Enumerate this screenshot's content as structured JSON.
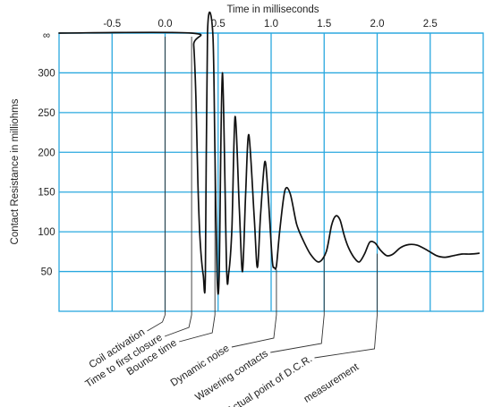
{
  "chart_data": {
    "type": "line",
    "title": "",
    "xlabel": "Time in milliseconds",
    "ylabel": "Contact Resistance in milliohms",
    "xlim": [
      -1.0,
      3.0
    ],
    "ylim": [
      0,
      350
    ],
    "x_ticks": [
      -0.5,
      0.0,
      0.5,
      1.0,
      1.5,
      2.0,
      2.5
    ],
    "x_tick_labels": [
      "-0.5",
      "0.0",
      "0.5",
      "1.0",
      "1.5",
      "2.0",
      "2.5"
    ],
    "y_ticks": [
      50,
      100,
      150,
      200,
      250,
      300,
      350
    ],
    "y_tick_labels": [
      "50",
      "100",
      "150",
      "200",
      "250",
      "300",
      "∞"
    ],
    "grid": true,
    "x_axis_position": "top",
    "series": [
      {
        "points": [
          [
            -1.0,
            350
          ],
          [
            0.25,
            350
          ],
          [
            0.27,
            335
          ],
          [
            0.29,
            270
          ],
          [
            0.31,
            160
          ],
          [
            0.33,
            90
          ],
          [
            0.36,
            45
          ],
          [
            0.38,
            45
          ],
          [
            0.4,
            350
          ],
          [
            0.45,
            350
          ],
          [
            0.47,
            200
          ],
          [
            0.49,
            45
          ],
          [
            0.51,
            45
          ],
          [
            0.54,
            300
          ],
          [
            0.58,
            55
          ],
          [
            0.6,
            48
          ],
          [
            0.63,
            105
          ],
          [
            0.66,
            245
          ],
          [
            0.7,
            130
          ],
          [
            0.73,
            50
          ],
          [
            0.76,
            150
          ],
          [
            0.79,
            222
          ],
          [
            0.84,
            120
          ],
          [
            0.87,
            55
          ],
          [
            0.9,
            120
          ],
          [
            0.94,
            188
          ],
          [
            0.97,
            150
          ],
          [
            1.01,
            65
          ],
          [
            1.03,
            55
          ],
          [
            1.05,
            57
          ],
          [
            1.08,
            100
          ],
          [
            1.13,
            152
          ],
          [
            1.18,
            148
          ],
          [
            1.24,
            110
          ],
          [
            1.3,
            90
          ],
          [
            1.37,
            72
          ],
          [
            1.45,
            62
          ],
          [
            1.52,
            75
          ],
          [
            1.57,
            108
          ],
          [
            1.61,
            120
          ],
          [
            1.65,
            115
          ],
          [
            1.69,
            95
          ],
          [
            1.73,
            80
          ],
          [
            1.78,
            68
          ],
          [
            1.83,
            62
          ],
          [
            1.88,
            72
          ],
          [
            1.93,
            87
          ],
          [
            1.98,
            86
          ],
          [
            2.03,
            77
          ],
          [
            2.09,
            70
          ],
          [
            2.15,
            72
          ],
          [
            2.22,
            80
          ],
          [
            2.3,
            84
          ],
          [
            2.38,
            83
          ],
          [
            2.47,
            77
          ],
          [
            2.56,
            70
          ],
          [
            2.64,
            68
          ],
          [
            2.72,
            70
          ],
          [
            2.8,
            72
          ],
          [
            2.88,
            72
          ],
          [
            2.96,
            73
          ]
        ]
      }
    ],
    "annotations": [
      {
        "text": "Coil activation",
        "x": 0.0
      },
      {
        "text": "Time to first closure",
        "x": 0.25
      },
      {
        "text": "Bounce time",
        "x": 0.47
      },
      {
        "text": "Dynamic noise",
        "x": 1.05
      },
      {
        "text": "Wavering contacts",
        "x": 1.5
      },
      {
        "text": "Actual point of D.C.R.",
        "x": 2.0
      },
      {
        "text": "measurement",
        "x": 2.0
      }
    ]
  }
}
